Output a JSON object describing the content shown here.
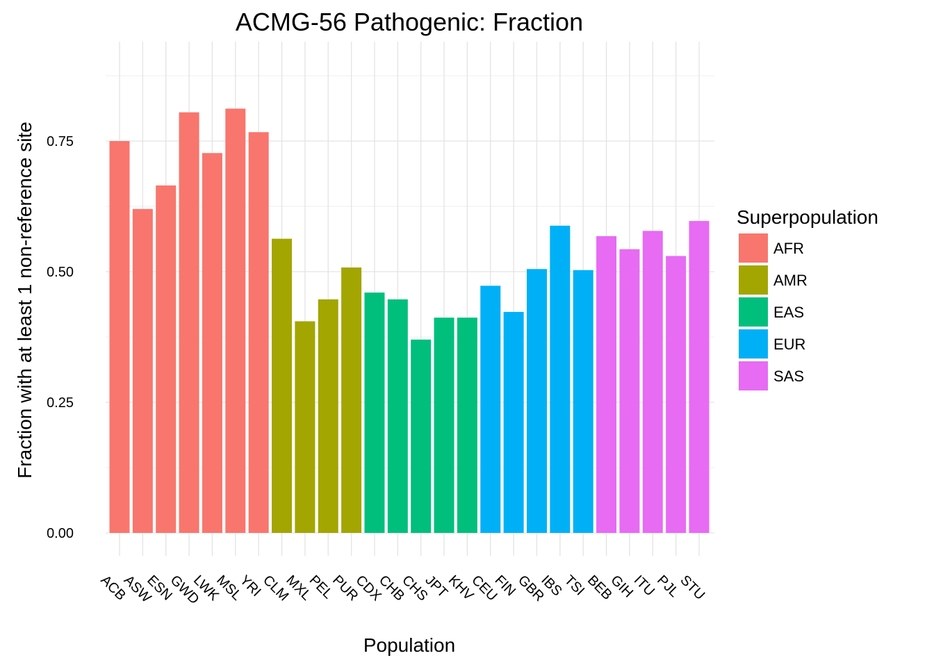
{
  "chart_data": {
    "type": "bar",
    "title": "ACMG-56 Pathogenic: Fraction",
    "xlabel": "Population",
    "ylabel": "Fraction with at least 1 non-reference site",
    "ylim": [
      0,
      0.88
    ],
    "yticks": [
      0,
      0.25,
      0.5,
      0.75
    ],
    "ytick_labels": [
      "0.00",
      "0.25",
      "0.50",
      "0.75"
    ],
    "grid": true,
    "legend": {
      "title": "Superpopulation",
      "placement": "right",
      "entries": [
        {
          "label": "AFR",
          "color": "#F8766D"
        },
        {
          "label": "AMR",
          "color": "#A3A500"
        },
        {
          "label": "EAS",
          "color": "#00BF7D"
        },
        {
          "label": "EUR",
          "color": "#00B0F6"
        },
        {
          "label": "SAS",
          "color": "#E76BF3"
        }
      ]
    },
    "categories": [
      "ACB",
      "ASW",
      "ESN",
      "GWD",
      "LWK",
      "MSL",
      "YRI",
      "CLM",
      "MXL",
      "PEL",
      "PUR",
      "CDX",
      "CHB",
      "CHS",
      "JPT",
      "KHV",
      "CEU",
      "FIN",
      "GBR",
      "IBS",
      "TSI",
      "BEB",
      "GIH",
      "ITU",
      "PJL",
      "STU"
    ],
    "values": [
      0.75,
      0.62,
      0.665,
      0.805,
      0.727,
      0.812,
      0.767,
      0.563,
      0.405,
      0.447,
      0.508,
      0.46,
      0.447,
      0.37,
      0.412,
      0.412,
      0.473,
      0.423,
      0.505,
      0.588,
      0.503,
      0.568,
      0.543,
      0.578,
      0.53,
      0.597
    ],
    "group": [
      "AFR",
      "AFR",
      "AFR",
      "AFR",
      "AFR",
      "AFR",
      "AFR",
      "AMR",
      "AMR",
      "AMR",
      "AMR",
      "EAS",
      "EAS",
      "EAS",
      "EAS",
      "EAS",
      "EUR",
      "EUR",
      "EUR",
      "EUR",
      "EUR",
      "SAS",
      "SAS",
      "SAS",
      "SAS",
      "SAS"
    ]
  }
}
